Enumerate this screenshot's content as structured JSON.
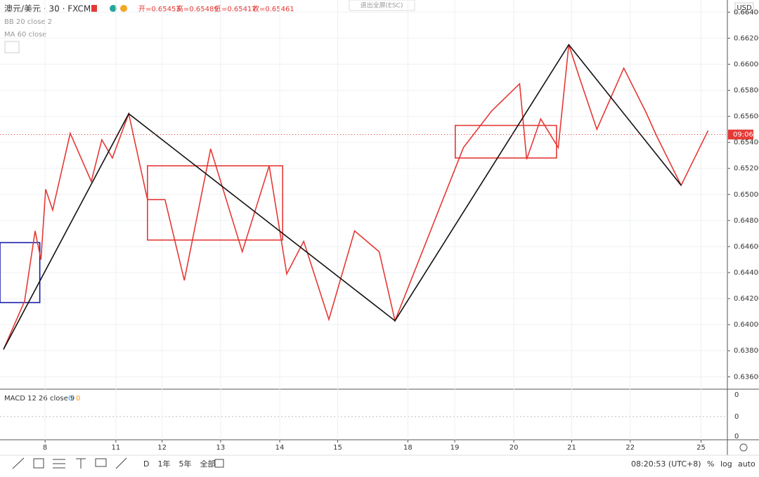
{
  "header": {
    "symbol": "澳元/美元 · 30 · FXCM",
    "open": "开=0.65453",
    "high": "高=0.65489",
    "low": "低=0.65417",
    "close": "收=0.65461",
    "indicators": [
      "BB 20 close 2",
      "MA 60 close"
    ],
    "exit_fullscreen": "退出全屏(ESC)"
  },
  "chart_data": {
    "type": "line",
    "currency": "USD",
    "last_label": "09:06",
    "last_value": 0.6546,
    "grid": true,
    "xlim": [
      0,
      12.43
    ],
    "ylim": [
      0.6351,
      0.6645
    ],
    "xticks": [
      {
        "value": 0.77,
        "label": "8"
      },
      {
        "value": 1.98,
        "label": "11"
      },
      {
        "value": 2.77,
        "label": "12"
      },
      {
        "value": 3.77,
        "label": "13"
      },
      {
        "value": 4.78,
        "label": "14"
      },
      {
        "value": 5.77,
        "label": "15"
      },
      {
        "value": 6.97,
        "label": "18"
      },
      {
        "value": 7.77,
        "label": "19"
      },
      {
        "value": 8.78,
        "label": "20"
      },
      {
        "value": 9.77,
        "label": "21"
      },
      {
        "value": 10.77,
        "label": "22"
      },
      {
        "value": 11.98,
        "label": "25"
      }
    ],
    "yticks": [
      {
        "value": 0.636,
        "label": "0.63600"
      },
      {
        "value": 0.638,
        "label": "0.63800"
      },
      {
        "value": 0.64,
        "label": "0.64000"
      },
      {
        "value": 0.642,
        "label": "0.64200"
      },
      {
        "value": 0.644,
        "label": "0.64400"
      },
      {
        "value": 0.646,
        "label": "0.64600"
      },
      {
        "value": 0.648,
        "label": "0.64800"
      },
      {
        "value": 0.65,
        "label": "0.65000"
      },
      {
        "value": 0.652,
        "label": "0.65200"
      },
      {
        "value": 0.654,
        "label": "0.65400"
      },
      {
        "value": 0.656,
        "label": "0.65600"
      },
      {
        "value": 0.658,
        "label": "0.65800"
      },
      {
        "value": 0.66,
        "label": "0.66000"
      },
      {
        "value": 0.662,
        "label": "0.66200"
      },
      {
        "value": 0.664,
        "label": "0.66400"
      }
    ],
    "series": [
      {
        "color": "#e53935",
        "x": [
          0.06,
          0.42,
          0.6,
          0.7,
          0.78,
          0.9,
          1.2,
          1.56,
          1.74,
          1.92,
          2.2,
          2.52,
          2.82,
          3.15,
          3.6,
          4.14,
          4.6,
          4.9,
          5.19,
          5.62,
          6.06,
          6.48,
          6.75,
          7.92,
          8.4,
          8.88,
          9.0,
          9.24,
          9.54,
          9.72,
          9.9,
          10.2,
          10.66,
          11.04,
          11.22,
          11.64,
          12.1
        ],
        "values": [
          0.6381,
          0.6418,
          0.6472,
          0.645,
          0.6504,
          0.6488,
          0.6547,
          0.651,
          0.6542,
          0.6528,
          0.6562,
          0.6496,
          0.6496,
          0.6434,
          0.6535,
          0.6456,
          0.6522,
          0.6439,
          0.6464,
          0.6404,
          0.6472,
          0.6456,
          0.6403,
          0.6536,
          0.6564,
          0.6585,
          0.6527,
          0.6558,
          0.6536,
          0.6615,
          0.659,
          0.655,
          0.6597,
          0.6563,
          0.6545,
          0.6507,
          0.6549
        ]
      },
      {
        "color": "#111111",
        "x": [
          0.06,
          2.2,
          6.75,
          9.72,
          11.64
        ],
        "values": [
          0.6381,
          0.6562,
          0.6403,
          0.6615,
          0.6507
        ]
      }
    ],
    "boxes": [
      {
        "color": "#1a1aa8",
        "x": [
          0,
          0.68
        ],
        "y": [
          0.6417,
          0.6463
        ]
      },
      {
        "color": "#e53935",
        "x": [
          2.52,
          4.83
        ],
        "y": [
          0.6465,
          0.6522
        ]
      },
      {
        "color": "#e53935",
        "x": [
          7.78,
          9.51
        ],
        "y": [
          0.6528,
          0.6553
        ]
      }
    ]
  },
  "macd": {
    "label": "MACD 12 26 close 9",
    "values": [
      "0",
      "0"
    ],
    "ticks": [
      "0",
      "0",
      "0"
    ]
  },
  "toolbar": {
    "periods": [
      "D",
      "1年",
      "5年",
      "全部"
    ],
    "time": "08:20:53 (UTC+8)",
    "options": [
      "%",
      "log",
      "auto"
    ]
  }
}
